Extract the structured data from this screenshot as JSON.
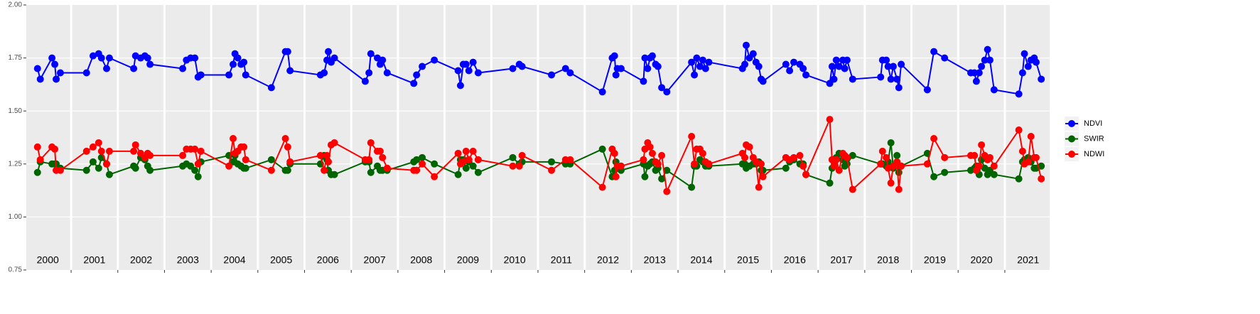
{
  "chart_data": {
    "type": "line",
    "x": [
      2000.28,
      2000.34,
      2000.59,
      2000.65,
      2000.68,
      2000.77,
      2001.33,
      2001.47,
      2001.59,
      2001.65,
      2001.76,
      2001.82,
      2002.34,
      2002.38,
      2002.49,
      2002.58,
      2002.64,
      2002.69,
      2003.39,
      2003.47,
      2003.56,
      2003.65,
      2003.72,
      2003.78,
      2004.38,
      2004.47,
      2004.51,
      2004.57,
      2004.64,
      2004.7,
      2004.74,
      2005.29,
      2005.59,
      2005.64,
      2005.69,
      2006.34,
      2006.42,
      2006.48,
      2006.51,
      2006.57,
      2006.64,
      2007.3,
      2007.38,
      2007.42,
      2007.56,
      2007.62,
      2007.67,
      2007.77,
      2008.34,
      2008.4,
      2008.52,
      2008.78,
      2009.29,
      2009.34,
      2009.4,
      2009.46,
      2009.52,
      2009.61,
      2009.72,
      2010.46,
      2010.6,
      2010.66,
      2011.29,
      2011.59,
      2011.69,
      2012.38,
      2012.59,
      2012.64,
      2012.67,
      2012.7,
      2012.78,
      2013.26,
      2013.29,
      2013.35,
      2013.4,
      2013.45,
      2013.52,
      2013.57,
      2013.65,
      2013.76,
      2014.29,
      2014.35,
      2014.4,
      2014.47,
      2014.53,
      2014.59,
      2014.66,
      2015.38,
      2015.43,
      2015.46,
      2015.53,
      2015.61,
      2015.67,
      2015.73,
      2015.78,
      2015.82,
      2016.31,
      2016.39,
      2016.48,
      2016.61,
      2016.68,
      2016.74,
      2017.25,
      2017.3,
      2017.34,
      2017.39,
      2017.45,
      2017.53,
      2017.57,
      2017.62,
      2017.74,
      2018.34,
      2018.38,
      2018.46,
      2018.5,
      2018.56,
      2018.61,
      2018.69,
      2018.73,
      2018.78,
      2019.34,
      2019.48,
      2019.71,
      2020.27,
      2020.35,
      2020.39,
      2020.45,
      2020.5,
      2020.57,
      2020.63,
      2020.68,
      2020.77,
      2021.3,
      2021.38,
      2021.42,
      2021.5,
      2021.56,
      2021.63,
      2021.67,
      2021.78
    ],
    "series": [
      {
        "name": "NDVI",
        "color": "#0000ff",
        "values": [
          1.7,
          1.65,
          1.75,
          1.72,
          1.65,
          1.68,
          1.68,
          1.76,
          1.77,
          1.75,
          1.7,
          1.75,
          1.7,
          1.76,
          1.75,
          1.76,
          1.75,
          1.72,
          1.7,
          1.74,
          1.75,
          1.75,
          1.66,
          1.67,
          1.67,
          1.72,
          1.77,
          1.75,
          1.72,
          1.73,
          1.67,
          1.61,
          1.78,
          1.78,
          1.69,
          1.67,
          1.68,
          1.74,
          1.78,
          1.73,
          1.75,
          1.64,
          1.68,
          1.77,
          1.75,
          1.72,
          1.74,
          1.68,
          1.63,
          1.67,
          1.71,
          1.74,
          1.69,
          1.62,
          1.72,
          1.72,
          1.69,
          1.73,
          1.68,
          1.7,
          1.72,
          1.71,
          1.67,
          1.7,
          1.68,
          1.59,
          1.75,
          1.76,
          1.67,
          1.7,
          1.7,
          1.64,
          1.75,
          1.7,
          1.75,
          1.76,
          1.72,
          1.71,
          1.61,
          1.59,
          1.73,
          1.67,
          1.75,
          1.71,
          1.74,
          1.7,
          1.73,
          1.7,
          1.72,
          1.81,
          1.75,
          1.77,
          1.73,
          1.71,
          1.65,
          1.64,
          1.72,
          1.69,
          1.73,
          1.72,
          1.7,
          1.67,
          1.63,
          1.71,
          1.65,
          1.74,
          1.71,
          1.74,
          1.7,
          1.74,
          1.65,
          1.66,
          1.74,
          1.74,
          1.71,
          1.65,
          1.71,
          1.65,
          1.61,
          1.72,
          1.6,
          1.78,
          1.75,
          1.68,
          1.68,
          1.64,
          1.68,
          1.71,
          1.74,
          1.79,
          1.74,
          1.6,
          1.58,
          1.68,
          1.77,
          1.71,
          1.74,
          1.75,
          1.73,
          1.65
        ]
      },
      {
        "name": "SWIR",
        "color": "#006400",
        "values": [
          1.21,
          1.26,
          1.25,
          1.25,
          1.25,
          1.23,
          1.22,
          1.26,
          1.23,
          1.28,
          1.25,
          1.2,
          1.24,
          1.23,
          1.28,
          1.27,
          1.24,
          1.22,
          1.24,
          1.25,
          1.24,
          1.22,
          1.19,
          1.26,
          1.29,
          1.26,
          1.29,
          1.25,
          1.24,
          1.23,
          1.23,
          1.27,
          1.22,
          1.22,
          1.25,
          1.25,
          1.29,
          1.27,
          1.22,
          1.2,
          1.2,
          1.26,
          1.26,
          1.21,
          1.24,
          1.22,
          1.22,
          1.22,
          1.26,
          1.27,
          1.28,
          1.25,
          1.2,
          1.27,
          1.27,
          1.23,
          1.26,
          1.24,
          1.21,
          1.28,
          1.25,
          1.26,
          1.26,
          1.25,
          1.25,
          1.32,
          1.19,
          1.22,
          1.26,
          1.23,
          1.22,
          1.25,
          1.19,
          1.24,
          1.25,
          1.26,
          1.22,
          1.23,
          1.18,
          1.22,
          1.14,
          1.24,
          1.24,
          1.27,
          1.26,
          1.24,
          1.24,
          1.25,
          1.25,
          1.23,
          1.24,
          1.25,
          1.25,
          1.26,
          1.22,
          1.22,
          1.23,
          1.26,
          1.27,
          1.25,
          1.25,
          1.2,
          1.16,
          1.23,
          1.26,
          1.28,
          1.3,
          1.27,
          1.24,
          1.25,
          1.29,
          1.25,
          1.25,
          1.24,
          1.26,
          1.35,
          1.23,
          1.29,
          1.21,
          1.24,
          1.3,
          1.19,
          1.21,
          1.22,
          1.23,
          1.24,
          1.2,
          1.27,
          1.23,
          1.2,
          1.22,
          1.2,
          1.18,
          1.26,
          1.27,
          1.28,
          1.26,
          1.23,
          1.23,
          1.24
        ]
      },
      {
        "name": "NDWI",
        "color": "#ff0000",
        "values": [
          1.33,
          1.27,
          1.33,
          1.32,
          1.22,
          1.22,
          1.31,
          1.33,
          1.35,
          1.31,
          1.25,
          1.31,
          1.31,
          1.34,
          1.3,
          1.28,
          1.3,
          1.29,
          1.29,
          1.32,
          1.32,
          1.32,
          1.25,
          1.31,
          1.24,
          1.37,
          1.3,
          1.31,
          1.33,
          1.33,
          1.27,
          1.22,
          1.37,
          1.33,
          1.26,
          1.29,
          1.22,
          1.29,
          1.26,
          1.34,
          1.35,
          1.27,
          1.27,
          1.35,
          1.31,
          1.31,
          1.28,
          1.23,
          1.22,
          1.22,
          1.25,
          1.19,
          1.3,
          1.25,
          1.26,
          1.31,
          1.27,
          1.31,
          1.27,
          1.24,
          1.24,
          1.29,
          1.22,
          1.27,
          1.27,
          1.14,
          1.32,
          1.3,
          1.19,
          1.24,
          1.24,
          1.27,
          1.32,
          1.35,
          1.33,
          1.3,
          1.26,
          1.25,
          1.29,
          1.12,
          1.38,
          1.25,
          1.32,
          1.32,
          1.3,
          1.26,
          1.25,
          1.3,
          1.28,
          1.34,
          1.33,
          1.28,
          1.26,
          1.14,
          1.25,
          1.19,
          1.28,
          1.27,
          1.28,
          1.29,
          1.24,
          1.2,
          1.46,
          1.27,
          1.24,
          1.27,
          1.22,
          1.3,
          1.29,
          1.28,
          1.13,
          1.25,
          1.31,
          1.28,
          1.23,
          1.16,
          1.24,
          1.26,
          1.13,
          1.24,
          1.25,
          1.37,
          1.28,
          1.29,
          1.29,
          1.22,
          1.24,
          1.34,
          1.29,
          1.27,
          1.28,
          1.24,
          1.41,
          1.31,
          1.25,
          1.26,
          1.38,
          1.28,
          1.28,
          1.18
        ]
      }
    ],
    "xlim": [
      2000.04,
      2021.96
    ],
    "xticks": [
      2001,
      2002,
      2003,
      2004,
      2005,
      2006,
      2007,
      2008,
      2009,
      2010,
      2011,
      2012,
      2013,
      2014,
      2015,
      2016,
      2017,
      2018,
      2019,
      2020,
      2021
    ],
    "year_labels": [
      "2000",
      "2001",
      "2002",
      "2003",
      "2004",
      "2005",
      "2006",
      "2007",
      "2008",
      "2009",
      "2010",
      "2011",
      "2012",
      "2013",
      "2014",
      "2015",
      "2016",
      "2017",
      "2018",
      "2019",
      "2020",
      "2021"
    ],
    "ylim": [
      0.75,
      2.0
    ],
    "yticks": [
      {
        "value": 0.75,
        "label": "0.75"
      },
      {
        "value": 1.0,
        "label": "1.00"
      },
      {
        "value": 1.25,
        "label": "1.25"
      },
      {
        "value": 1.5,
        "label": "1.50"
      },
      {
        "value": 1.75,
        "label": "1.75"
      },
      {
        "value": 2.0,
        "label": "2.00"
      }
    ],
    "grid": true,
    "legend": "right"
  }
}
